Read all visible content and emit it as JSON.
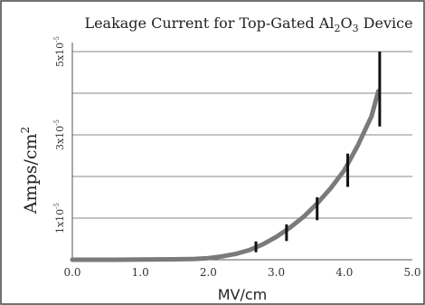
{
  "chart_data": {
    "type": "line",
    "title": {
      "prefix": "Leakage Current for Top-Gated Al",
      "sub1": "2",
      "mid": "O",
      "sub2": "3",
      "suffix": " Device"
    },
    "xlabel": "MV/cm",
    "ylabel": {
      "base": "Amps/cm",
      "sup": "2"
    },
    "xlim": [
      0,
      5
    ],
    "ylim": [
      0,
      5e-05
    ],
    "grid": {
      "horizontal": true,
      "vertical": false
    },
    "x_ticks": [
      {
        "value": 0,
        "label": "0.0"
      },
      {
        "value": 1,
        "label": "1.0"
      },
      {
        "value": 2,
        "label": "2.0"
      },
      {
        "value": 3,
        "label": "3.0"
      },
      {
        "value": 4,
        "label": "4.0"
      },
      {
        "value": 5,
        "label": "5.0"
      }
    ],
    "y_gridlines": [
      1e-05,
      2e-05,
      3e-05,
      4e-05,
      5e-05
    ],
    "y_tick_labels": [
      {
        "value": 1e-05,
        "mantissa": "1x10",
        "exponent": "-5"
      },
      {
        "value": 3e-05,
        "mantissa": "3x10",
        "exponent": "-5"
      },
      {
        "value": 5e-05,
        "mantissa": "5x10",
        "exponent": "-5"
      }
    ],
    "series": [
      {
        "x": [
          0,
          0.5,
          1.0,
          1.5,
          1.8,
          2.0,
          2.2,
          2.4,
          2.6,
          2.8,
          3.0,
          3.2,
          3.4,
          3.6,
          3.8,
          4.0,
          4.2,
          4.4,
          4.5
        ],
        "y": [
          0,
          0,
          5e-08,
          1e-07,
          2e-07,
          4e-07,
          8e-07,
          1.4e-06,
          2.3e-06,
          3.7e-06,
          5.5e-06,
          7.7e-06,
          1.03e-05,
          1.35e-05,
          1.72e-05,
          2.15e-05,
          2.75e-05,
          3.45e-05,
          4.05e-05
        ],
        "color": "#7a7a7a"
      }
    ],
    "error_bars": [
      {
        "x": 2.7,
        "y": 3e-06,
        "low": 1.8e-06,
        "high": 4.4e-06
      },
      {
        "x": 3.15,
        "y": 6.5e-06,
        "low": 4.5e-06,
        "high": 8.5e-06
      },
      {
        "x": 3.6,
        "y": 1.23e-05,
        "low": 9.5e-06,
        "high": 1.5e-05
      },
      {
        "x": 4.05,
        "y": 2.15e-05,
        "low": 1.75e-05,
        "high": 2.55e-05
      },
      {
        "x": 4.52,
        "y": 4.05e-05,
        "low": 3.2e-05,
        "high": 5e-05
      }
    ],
    "error_bar_color": "#111111",
    "gridline_color": "#888888",
    "axis_color": "#555555"
  }
}
